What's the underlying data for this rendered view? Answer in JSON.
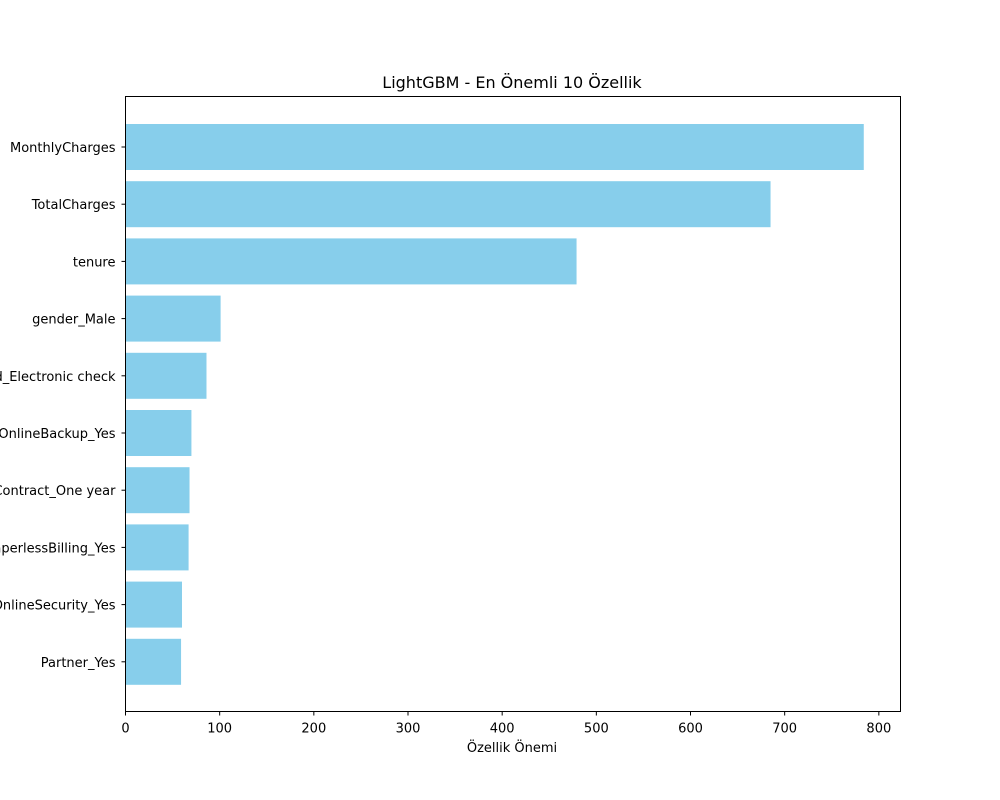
{
  "chart_data": {
    "type": "bar",
    "orientation": "horizontal",
    "title": "LightGBM - En Önemli 10 Özellik",
    "xlabel": "Özellik Önemi",
    "ylabel": "",
    "xlim": [
      0,
      823
    ],
    "xticks": [
      0,
      100,
      200,
      300,
      400,
      500,
      600,
      700,
      800
    ],
    "grid": false,
    "bar_color": "#87CEEB",
    "categories": [
      "MonthlyCharges",
      "TotalCharges",
      "tenure",
      "gender_Male",
      "PaymentMethod_Electronic check",
      "OnlineBackup_Yes",
      "Contract_One year",
      "PaperlessBilling_Yes",
      "OnlineSecurity_Yes",
      "Partner_Yes"
    ],
    "values": [
      784,
      685,
      479,
      101,
      86,
      70,
      68,
      67,
      60,
      59
    ]
  }
}
